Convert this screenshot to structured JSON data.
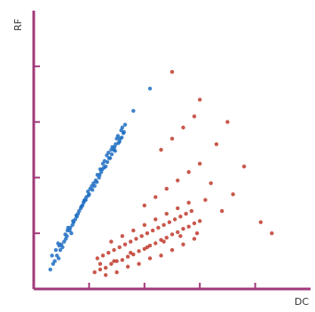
{
  "chart_data": {
    "type": "scatter",
    "title": "",
    "xlabel": "DC",
    "ylabel": "RF",
    "xlim": [
      0,
      5
    ],
    "ylim": [
      0,
      5
    ],
    "x_ticks": [
      1,
      2,
      3,
      4
    ],
    "y_ticks": [
      1,
      2,
      3,
      4
    ],
    "tick_labels_shown": false,
    "grid": false,
    "legend": "none",
    "axis_color": "#a03a7a",
    "series": [
      {
        "color": "#1f6fc2",
        "x": [
          0.35,
          0.42,
          0.48,
          0.55,
          0.6,
          0.65,
          0.72,
          0.78,
          0.85,
          0.9,
          0.95,
          1.02,
          1.08,
          1.15,
          1.2,
          1.28,
          1.35,
          1.42,
          1.5,
          1.58,
          0.4,
          0.5,
          0.62,
          0.7,
          0.8,
          0.92,
          1.0,
          1.12,
          1.22,
          1.3,
          1.38,
          1.45,
          1.55,
          1.62,
          0.45,
          0.58,
          0.68,
          0.75,
          0.88,
          0.98,
          1.05,
          1.18,
          1.25,
          1.32,
          1.4,
          1.48,
          1.52,
          1.6,
          0.3,
          0.38,
          0.52,
          0.66,
          0.82,
          0.94,
          1.1,
          1.24,
          1.36,
          1.46,
          1.56,
          1.65,
          0.33,
          0.46,
          0.57,
          0.71,
          0.86,
          0.99,
          1.14,
          1.27,
          1.41,
          1.53,
          1.63,
          0.44,
          0.61,
          0.77,
          0.91,
          1.06,
          1.19,
          1.33,
          1.47,
          1.59,
          1.8,
          2.1
        ],
        "y": [
          0.45,
          0.6,
          0.7,
          0.85,
          0.95,
          1.05,
          1.2,
          1.3,
          1.45,
          1.55,
          1.65,
          1.8,
          1.9,
          2.05,
          2.15,
          2.3,
          2.45,
          2.55,
          2.7,
          2.85,
          0.7,
          0.8,
          1.1,
          1.15,
          1.35,
          1.6,
          1.7,
          1.95,
          2.1,
          2.2,
          2.35,
          2.5,
          2.65,
          2.8,
          0.55,
          0.9,
          1.0,
          1.25,
          1.5,
          1.75,
          1.85,
          2.0,
          2.25,
          2.4,
          2.5,
          2.6,
          2.75,
          2.9,
          0.35,
          0.5,
          0.75,
          1.1,
          1.4,
          1.6,
          1.85,
          2.15,
          2.35,
          2.55,
          2.7,
          2.95,
          0.6,
          0.78,
          0.98,
          1.22,
          1.48,
          1.68,
          1.92,
          2.18,
          2.42,
          2.62,
          2.82,
          0.82,
          1.05,
          1.32,
          1.58,
          1.78,
          2.05,
          2.28,
          2.48,
          2.72,
          3.2,
          3.6
        ]
      },
      {
        "color": "#c0392b",
        "x": [
          1.1,
          1.2,
          1.3,
          1.4,
          1.5,
          1.6,
          1.7,
          1.8,
          1.9,
          2.0,
          2.1,
          2.2,
          2.3,
          2.4,
          2.5,
          2.6,
          2.7,
          2.8,
          2.9,
          3.0,
          1.15,
          1.25,
          1.35,
          1.45,
          1.55,
          1.65,
          1.75,
          1.85,
          1.95,
          2.05,
          2.15,
          2.25,
          2.35,
          2.45,
          2.55,
          2.65,
          2.75,
          2.85,
          1.3,
          1.5,
          1.7,
          1.9,
          2.1,
          2.3,
          2.5,
          2.7,
          2.9,
          1.4,
          1.6,
          1.8,
          2.0,
          2.2,
          2.4,
          2.6,
          2.8,
          1.2,
          1.45,
          1.75,
          2.05,
          2.35,
          2.65,
          2.95,
          2.0,
          2.2,
          2.4,
          2.6,
          2.8,
          3.0,
          2.3,
          2.5,
          2.7,
          2.9,
          3.1,
          3.2,
          3.4,
          3.6,
          3.8,
          4.1,
          4.3,
          3.3,
          3.5,
          2.5,
          3.0
        ],
        "y": [
          0.3,
          0.35,
          0.38,
          0.45,
          0.5,
          0.52,
          0.58,
          0.62,
          0.68,
          0.72,
          0.78,
          0.82,
          0.88,
          0.92,
          0.98,
          1.02,
          1.08,
          1.12,
          1.18,
          1.22,
          0.55,
          0.6,
          0.65,
          0.7,
          0.75,
          0.8,
          0.85,
          0.9,
          0.95,
          1.0,
          1.05,
          1.1,
          1.15,
          1.2,
          1.25,
          1.3,
          1.35,
          1.4,
          0.25,
          0.3,
          0.4,
          0.45,
          0.55,
          0.6,
          0.7,
          0.8,
          0.9,
          0.85,
          0.95,
          1.05,
          1.15,
          1.25,
          1.35,
          1.45,
          1.55,
          0.45,
          0.5,
          0.65,
          0.75,
          0.85,
          0.95,
          1.0,
          1.5,
          1.65,
          1.8,
          1.95,
          2.1,
          2.25,
          2.5,
          2.7,
          2.9,
          3.1,
          1.6,
          1.9,
          1.4,
          1.7,
          2.2,
          1.2,
          1.0,
          2.6,
          3.0,
          3.9,
          3.4
        ]
      }
    ]
  }
}
